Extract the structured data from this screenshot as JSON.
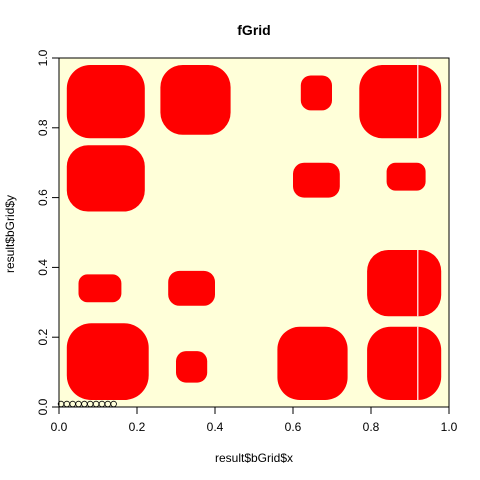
{
  "chart_data": {
    "type": "heatmap",
    "title": "fGrid",
    "xlabel": "result$bGrid$x",
    "ylabel": "result$bGrid$y",
    "xlim": [
      0,
      1
    ],
    "ylim": [
      0,
      1
    ],
    "x_ticks": [
      0.0,
      0.2,
      0.4,
      0.6,
      0.8,
      1.0
    ],
    "y_ticks": [
      0.0,
      0.2,
      0.4,
      0.6,
      0.8,
      1.0
    ],
    "x_tick_labels": [
      "0.0",
      "0.2",
      "0.4",
      "0.6",
      "0.8",
      "1.0"
    ],
    "y_tick_labels": [
      "0.0",
      "0.2",
      "0.4",
      "0.6",
      "0.8",
      "1.0"
    ],
    "grid": false,
    "background_color": "#ffffd9",
    "region_color": "#ff0000",
    "regions": [
      {
        "x": [
          0.02,
          0.23
        ],
        "y": [
          0.02,
          0.24
        ]
      },
      {
        "x": [
          0.3,
          0.38
        ],
        "y": [
          0.07,
          0.16
        ]
      },
      {
        "x": [
          0.56,
          0.74
        ],
        "y": [
          0.02,
          0.23
        ]
      },
      {
        "x": [
          0.79,
          0.98
        ],
        "y": [
          0.02,
          0.23
        ]
      },
      {
        "x": [
          0.05,
          0.16
        ],
        "y": [
          0.3,
          0.38
        ]
      },
      {
        "x": [
          0.28,
          0.4
        ],
        "y": [
          0.29,
          0.39
        ]
      },
      {
        "x": [
          0.79,
          0.98
        ],
        "y": [
          0.26,
          0.45
        ]
      },
      {
        "x": [
          0.02,
          0.22
        ],
        "y": [
          0.56,
          0.75
        ]
      },
      {
        "x": [
          0.6,
          0.72
        ],
        "y": [
          0.6,
          0.7
        ]
      },
      {
        "x": [
          0.84,
          0.94
        ],
        "y": [
          0.62,
          0.7
        ]
      },
      {
        "x": [
          0.02,
          0.22
        ],
        "y": [
          0.77,
          0.98
        ]
      },
      {
        "x": [
          0.26,
          0.44
        ],
        "y": [
          0.78,
          0.98
        ]
      },
      {
        "x": [
          0.62,
          0.7
        ],
        "y": [
          0.85,
          0.95
        ]
      },
      {
        "x": [
          0.77,
          0.98
        ],
        "y": [
          0.77,
          0.98
        ]
      }
    ],
    "white_line_x": 0.92,
    "white_line_segments": [
      [
        0.02,
        0.23
      ],
      [
        0.26,
        0.45
      ],
      [
        0.77,
        1.0
      ]
    ],
    "points": {
      "x": [
        0.0,
        0.015,
        0.03,
        0.045,
        0.06,
        0.075,
        0.09,
        0.105,
        0.12,
        0.135
      ],
      "y": [
        0,
        0,
        0,
        0,
        0,
        0,
        0,
        0,
        0,
        0
      ]
    }
  }
}
